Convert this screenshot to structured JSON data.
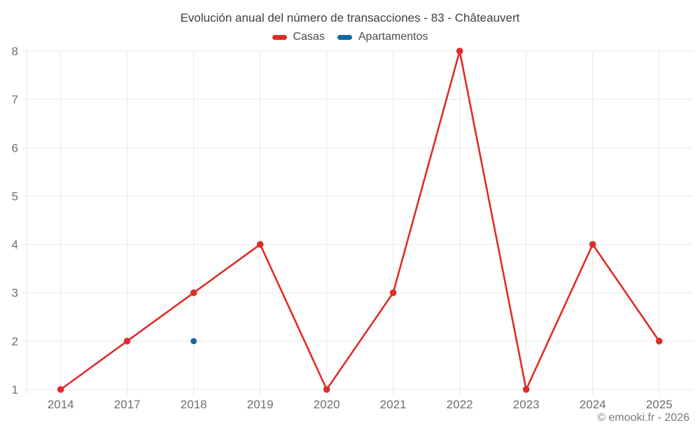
{
  "header": {
    "title": "Evolución anual del número de transacciones - 83 - Châteauvert"
  },
  "legend": {
    "items": [
      {
        "label": "Casas",
        "color": "#e12b28"
      },
      {
        "label": "Apartamentos",
        "color": "#15689d"
      }
    ]
  },
  "footer": {
    "text": "© emooki.fr - 2026"
  },
  "colors": {
    "casas": "#e12b28",
    "apartamentos": "#15689d",
    "grid": "#e8e8e8",
    "axis_line": "#e3e3e3",
    "tick_text": "#6e6e6e",
    "title_text": "#3e3e3e",
    "legend_text": "#4d4d4d",
    "footer_text": "#7c7c7c",
    "background": "#ffffff"
  },
  "chart_data": {
    "type": "line",
    "title": "Evolución anual del número de transacciones - 83 - Châteauvert",
    "categories": [
      "2014",
      "2017",
      "2018",
      "2019",
      "2020",
      "2021",
      "2022",
      "2023",
      "2024",
      "2025"
    ],
    "series": [
      {
        "name": "Casas",
        "color": "#e12b28",
        "marker": "circle",
        "line": true,
        "values": [
          1,
          2,
          3,
          4,
          1,
          3,
          8,
          1,
          4,
          2
        ]
      },
      {
        "name": "Apartamentos",
        "color": "#15689d",
        "marker": "circle",
        "line": true,
        "values": [
          null,
          null,
          2,
          null,
          null,
          null,
          null,
          null,
          null,
          null
        ]
      }
    ],
    "xlabel": "",
    "ylabel": "",
    "yticks": [
      1,
      2,
      3,
      4,
      5,
      6,
      7,
      8
    ],
    "ylim": [
      1,
      8
    ],
    "grid": true,
    "legend_position": "top-center"
  }
}
